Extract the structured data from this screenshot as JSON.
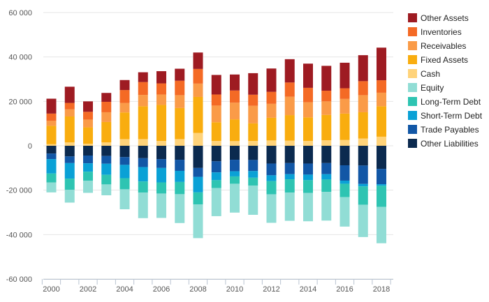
{
  "chart_data": {
    "type": "bar",
    "stacked": true,
    "x": [
      2000,
      2001,
      2002,
      2003,
      2004,
      2005,
      2006,
      2007,
      2008,
      2009,
      2010,
      2011,
      2012,
      2013,
      2014,
      2015,
      2016,
      2017,
      2018
    ],
    "x_tick_labels": [
      "2000",
      "2002",
      "2004",
      "2006",
      "2008",
      "2010",
      "2012",
      "2014",
      "2016",
      "2018"
    ],
    "y_tick_labels": [
      "60 000",
      "40 000",
      "20 000",
      "0",
      "-20 000",
      "-40 000",
      "-60 000"
    ],
    "y_ticks": [
      60000,
      40000,
      20000,
      0,
      -20000,
      -40000,
      -60000
    ],
    "ylim": [
      -60000,
      60000
    ],
    "grid": "horizontal",
    "legend_position": "right",
    "series": [
      {
        "name": "Other Liabilities",
        "color": "#0b2a4f",
        "side": "negative",
        "values": [
          -3500,
          -4800,
          -4400,
          -4600,
          -5100,
          -5600,
          -6000,
          -6300,
          -10000,
          -7000,
          -6300,
          -6400,
          -8000,
          -7800,
          -8000,
          -7800,
          -8800,
          -8900,
          -10400
        ]
      },
      {
        "name": "Trade Payables",
        "color": "#1257a6",
        "side": "negative",
        "values": [
          -2500,
          -3000,
          -3500,
          -3500,
          -3500,
          -4000,
          -4000,
          -5000,
          -4000,
          -5000,
          -5200,
          -5000,
          -5300,
          -5000,
          -5000,
          -5000,
          -6900,
          -8300,
          -6900
        ]
      },
      {
        "name": "Short-Term Debt",
        "color": "#0aa1d6",
        "side": "negative",
        "values": [
          -6500,
          -7000,
          -3800,
          -5000,
          -6000,
          -6500,
          -6500,
          -5000,
          -7000,
          -3500,
          -2300,
          -3000,
          -2600,
          -2300,
          -2500,
          -2400,
          -1400,
          -1100,
          -700
        ]
      },
      {
        "name": "Long-Term Debt",
        "color": "#2ec4b2",
        "side": "negative",
        "values": [
          -4000,
          -5000,
          -4000,
          -4300,
          -5000,
          -5000,
          -5000,
          -5500,
          -5400,
          -3500,
          -3300,
          -3500,
          -6000,
          -6000,
          -5700,
          -5600,
          -6000,
          -8300,
          -9500
        ]
      },
      {
        "name": "Equity",
        "color": "#91ddd5",
        "side": "negative",
        "values": [
          -4500,
          -5800,
          -5500,
          -4900,
          -9000,
          -11500,
          -11000,
          -13000,
          -15200,
          -12700,
          -13000,
          -13200,
          -12800,
          -12700,
          -12800,
          -12900,
          -13300,
          -14500,
          -16400
        ]
      },
      {
        "name": "Cash",
        "color": "#ffd37a",
        "side": "positive",
        "values": [
          700,
          1500,
          900,
          1500,
          3000,
          3000,
          2200,
          3000,
          5800,
          2200,
          2100,
          2200,
          2400,
          2300,
          2200,
          2500,
          2600,
          3300,
          4100
        ]
      },
      {
        "name": "Fixed Assets",
        "color": "#f9ad0f",
        "side": "positive",
        "values": [
          8300,
          11700,
          7400,
          9200,
          12000,
          14800,
          16200,
          14000,
          16200,
          8400,
          9800,
          7900,
          10200,
          11500,
          10600,
          11400,
          11900,
          11800,
          13700
        ]
      },
      {
        "name": "Receivables",
        "color": "#fa9b48",
        "side": "positive",
        "values": [
          2300,
          3200,
          3500,
          4400,
          4300,
          5100,
          4700,
          5800,
          6000,
          7500,
          7500,
          7900,
          6300,
          8300,
          6800,
          6100,
          6600,
          7700,
          6100
        ]
      },
      {
        "name": "Inventories",
        "color": "#f46a25",
        "side": "positive",
        "values": [
          3200,
          2900,
          3500,
          4700,
          5800,
          5800,
          5000,
          6500,
          6600,
          5000,
          5500,
          5000,
          5400,
          6400,
          6500,
          4800,
          4800,
          6300,
          5600
        ]
      },
      {
        "name": "Other Assets",
        "color": "#9e1b22",
        "side": "positive",
        "values": [
          6700,
          7300,
          4700,
          4000,
          4500,
          4400,
          5500,
          5400,
          7400,
          8800,
          7200,
          9700,
          10500,
          10500,
          10900,
          11200,
          11500,
          11700,
          14700
        ]
      }
    ]
  },
  "legend": {
    "order": [
      "Other Assets",
      "Inventories",
      "Receivables",
      "Fixed Assets",
      "Cash",
      "Equity",
      "Long-Term Debt",
      "Short-Term Debt",
      "Trade Payables",
      "Other Liabilities"
    ]
  }
}
